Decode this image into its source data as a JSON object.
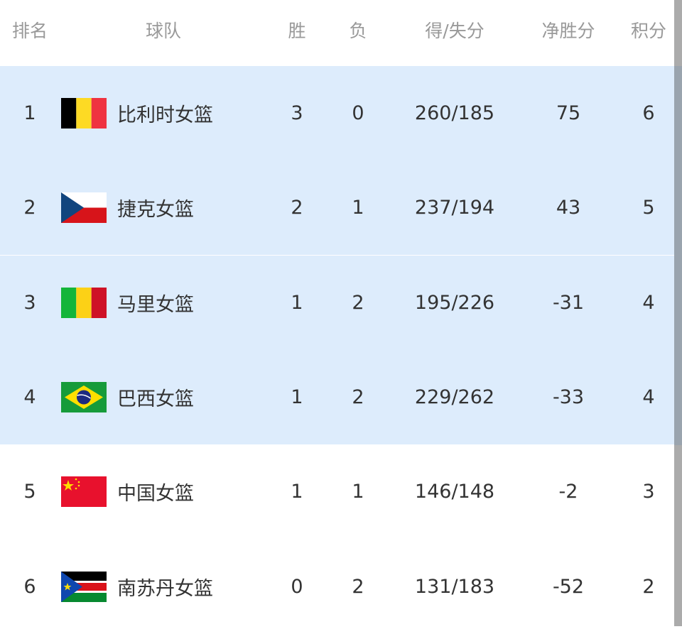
{
  "headers": {
    "rank": "排名",
    "team": "球队",
    "wins": "胜",
    "losses": "负",
    "score": "得/失分",
    "diff": "净胜分",
    "points": "积分"
  },
  "highlight_color": "#ddecfc",
  "rows": [
    {
      "rank": "1",
      "flag": "belgium-flag-icon",
      "team": "比利时女篮",
      "wins": "3",
      "losses": "0",
      "score": "260/185",
      "diff": "75",
      "points": "6",
      "highlighted": true
    },
    {
      "rank": "2",
      "flag": "czech-flag-icon",
      "team": "捷克女篮",
      "wins": "2",
      "losses": "1",
      "score": "237/194",
      "diff": "43",
      "points": "5",
      "highlighted": true
    },
    {
      "rank": "3",
      "flag": "mali-flag-icon",
      "team": "马里女篮",
      "wins": "1",
      "losses": "2",
      "score": "195/226",
      "diff": "-31",
      "points": "4",
      "highlighted": true
    },
    {
      "rank": "4",
      "flag": "brazil-flag-icon",
      "team": "巴西女篮",
      "wins": "1",
      "losses": "2",
      "score": "229/262",
      "diff": "-33",
      "points": "4",
      "highlighted": true
    },
    {
      "rank": "5",
      "flag": "china-flag-icon",
      "team": "中国女篮",
      "wins": "1",
      "losses": "1",
      "score": "146/148",
      "diff": "-2",
      "points": "3",
      "highlighted": false
    },
    {
      "rank": "6",
      "flag": "south-sudan-flag-icon",
      "team": "南苏丹女篮",
      "wins": "0",
      "losses": "2",
      "score": "131/183",
      "diff": "-52",
      "points": "2",
      "highlighted": false
    }
  ]
}
